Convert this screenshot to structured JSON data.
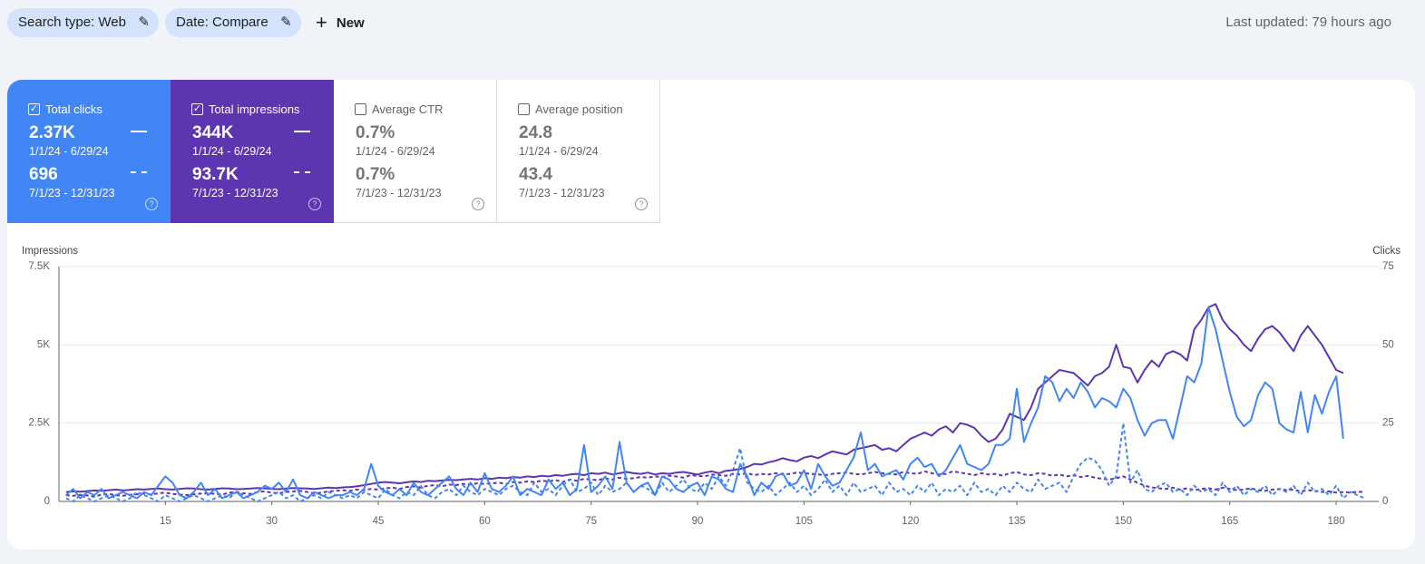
{
  "toolbar": {
    "chips": [
      "Search type: Web",
      "Date: Compare"
    ],
    "new_button": "New",
    "last_updated": "Last updated: 79 hours ago"
  },
  "metrics": [
    {
      "title": "Total clicks",
      "checked": true,
      "color": "#4285f4",
      "current": "2.37K",
      "current_range": "1/1/24 - 6/29/24",
      "previous": "696",
      "previous_range": "7/1/23 - 12/31/23"
    },
    {
      "title": "Total impressions",
      "checked": true,
      "color": "#5e35b1",
      "current": "344K",
      "current_range": "1/1/24 - 6/29/24",
      "previous": "93.7K",
      "previous_range": "7/1/23 - 12/31/23"
    },
    {
      "title": "Average CTR",
      "checked": false,
      "color": "#00897b",
      "current": "0.7%",
      "current_range": "1/1/24 - 6/29/24",
      "previous": "0.7%",
      "previous_range": "7/1/23 - 12/31/23"
    },
    {
      "title": "Average position",
      "checked": false,
      "color": "#e8710a",
      "current": "24.8",
      "current_range": "1/1/24 - 6/29/24",
      "previous": "43.4",
      "previous_range": "7/1/23 - 12/31/23"
    }
  ],
  "chart_data": {
    "type": "line",
    "y_label": "Impressions",
    "y2_label": "Clicks",
    "xlim": [
      0,
      186
    ],
    "xticks": [
      15,
      30,
      45,
      60,
      75,
      90,
      105,
      120,
      135,
      150,
      165,
      180
    ],
    "ylim": [
      0,
      7500
    ],
    "yticks": [
      0,
      {
        "value": 2500,
        "label": "2.5K"
      },
      {
        "value": 5000,
        "label": "5K"
      },
      {
        "value": 7500,
        "label": "7.5K"
      }
    ],
    "y2lim": [
      0,
      75
    ],
    "y2ticks": [
      0,
      25,
      50,
      75
    ],
    "grid": true,
    "x": [
      1,
      2,
      3,
      4,
      5,
      6,
      7,
      8,
      9,
      10,
      11,
      12,
      13,
      14,
      15,
      16,
      17,
      18,
      19,
      20,
      21,
      22,
      23,
      24,
      25,
      26,
      27,
      28,
      29,
      30,
      31,
      32,
      33,
      34,
      35,
      36,
      37,
      38,
      39,
      40,
      41,
      42,
      43,
      44,
      45,
      46,
      47,
      48,
      49,
      50,
      51,
      52,
      53,
      54,
      55,
      56,
      57,
      58,
      59,
      60,
      61,
      62,
      63,
      64,
      65,
      66,
      67,
      68,
      69,
      70,
      71,
      72,
      73,
      74,
      75,
      76,
      77,
      78,
      79,
      80,
      81,
      82,
      83,
      84,
      85,
      86,
      87,
      88,
      89,
      90,
      91,
      92,
      93,
      94,
      95,
      96,
      97,
      98,
      99,
      100,
      101,
      102,
      103,
      104,
      105,
      106,
      107,
      108,
      109,
      110,
      111,
      112,
      113,
      114,
      115,
      116,
      117,
      118,
      119,
      120,
      121,
      122,
      123,
      124,
      125,
      126,
      127,
      128,
      129,
      130,
      131,
      132,
      133,
      134,
      135,
      136,
      137,
      138,
      139,
      140,
      141,
      142,
      143,
      144,
      145,
      146,
      147,
      148,
      149,
      150,
      151,
      152,
      153,
      154,
      155,
      156,
      157,
      158,
      159,
      160,
      161,
      162,
      163,
      164,
      165,
      166,
      167,
      168,
      169,
      170,
      171,
      172,
      173,
      174,
      175,
      176,
      177,
      178,
      179,
      180,
      181,
      182,
      183,
      184
    ],
    "series": [
      {
        "name": "Impressions previous",
        "color": "#5e35b1",
        "dash": true,
        "values": [
          200,
          180,
          210,
          190,
          150,
          220,
          240,
          200,
          180,
          210,
          230,
          250,
          220,
          260,
          280,
          240,
          220,
          200,
          230,
          250,
          260,
          240,
          220,
          280,
          300,
          260,
          240,
          300,
          320,
          280,
          260,
          300,
          320,
          340,
          300,
          260,
          280,
          320,
          340,
          360,
          340,
          380,
          360,
          400,
          380,
          420,
          440,
          400,
          460,
          480,
          440,
          500,
          520,
          480,
          540,
          520,
          560,
          540,
          580,
          560,
          580,
          600,
          560,
          620,
          600,
          640,
          620,
          660,
          640,
          680,
          620,
          700,
          660,
          720,
          700,
          680,
          740,
          700,
          760,
          720,
          740,
          780,
          760,
          800,
          780,
          820,
          800,
          760,
          840,
          820,
          800,
          860,
          840,
          820,
          880,
          860,
          900,
          840,
          880,
          860,
          900,
          860,
          880,
          920,
          900,
          880,
          860,
          840,
          880,
          900,
          920,
          880,
          860,
          900,
          940,
          900,
          880,
          860,
          940,
          900,
          880,
          960,
          900,
          860,
          880,
          960,
          920,
          880,
          840,
          900,
          860,
          880,
          820,
          900,
          940,
          860,
          840,
          900,
          880,
          820,
          860,
          800,
          840,
          780,
          820,
          760,
          720,
          700,
          740,
          800,
          700,
          600,
          500,
          450,
          420,
          400,
          440,
          380,
          420,
          360,
          400,
          420,
          380,
          440,
          400,
          360,
          380,
          420,
          360,
          340,
          380,
          400,
          360,
          380,
          320,
          360,
          340,
          300,
          320,
          280,
          300,
          280,
          310,
          300
        ]
      },
      {
        "name": "Clicks previous",
        "color": "#4285f4",
        "dash": true,
        "axis": "y2",
        "values": [
          1,
          0,
          2,
          1,
          0,
          1,
          2,
          1,
          0,
          1,
          3,
          2,
          1,
          0,
          2,
          1,
          0,
          1,
          2,
          1,
          0,
          1,
          2,
          1,
          3,
          2,
          1,
          0,
          1,
          2,
          3,
          1,
          2,
          0,
          1,
          2,
          1,
          3,
          2,
          1,
          2,
          1,
          3,
          2,
          1,
          4,
          2,
          1,
          3,
          2,
          5,
          2,
          1,
          3,
          4,
          2,
          5,
          3,
          2,
          4,
          3,
          2,
          4,
          5,
          3,
          2,
          6,
          3,
          4,
          2,
          5,
          7,
          3,
          4,
          6,
          2,
          5,
          3,
          4,
          6,
          3,
          5,
          4,
          2,
          6,
          3,
          5,
          7,
          4,
          3,
          6,
          4,
          8,
          5,
          10,
          17,
          6,
          4,
          3,
          5,
          2,
          4,
          6,
          3,
          5,
          2,
          4,
          7,
          3,
          5,
          2,
          6,
          3,
          4,
          5,
          2,
          6,
          3,
          4,
          2,
          5,
          3,
          6,
          2,
          4,
          3,
          5,
          2,
          6,
          3,
          4,
          2,
          5,
          3,
          6,
          4,
          3,
          7,
          4,
          5,
          6,
          3,
          8,
          12,
          14,
          13,
          10,
          5,
          8,
          25,
          6,
          10,
          4,
          3,
          5,
          6,
          3,
          4,
          2,
          5,
          3,
          4,
          2,
          6,
          3,
          5,
          2,
          4,
          3,
          5,
          2,
          4,
          3,
          5,
          2,
          6,
          3,
          4,
          2,
          5,
          1,
          3,
          2,
          1
        ]
      },
      {
        "name": "Impressions",
        "color": "#5e35b1",
        "dash": false,
        "values": [
          300,
          320,
          310,
          330,
          350,
          340,
          360,
          380,
          350,
          370,
          390,
          380,
          400,
          410,
          390,
          380,
          400,
          420,
          410,
          390,
          380,
          400,
          420,
          410,
          390,
          400,
          410,
          430,
          420,
          400,
          390,
          410,
          430,
          420,
          410,
          400,
          420,
          440,
          430,
          450,
          460,
          480,
          520,
          560,
          600,
          620,
          600,
          580,
          610,
          640,
          620,
          660,
          650,
          670,
          690,
          680,
          700,
          720,
          700,
          740,
          720,
          760,
          740,
          780,
          760,
          800,
          780,
          820,
          800,
          840,
          820,
          860,
          880,
          840,
          900,
          880,
          920,
          860,
          900,
          940,
          900,
          880,
          920,
          860,
          900,
          880,
          920,
          940,
          900,
          860,
          920,
          960,
          900,
          980,
          1000,
          1040,
          1100,
          1200,
          1180,
          1250,
          1300,
          1380,
          1320,
          1280,
          1400,
          1450,
          1380,
          1500,
          1600,
          1550,
          1500,
          1650,
          1700,
          1750,
          1800,
          1650,
          1700,
          1600,
          1800,
          2000,
          2100,
          2200,
          2100,
          2300,
          2400,
          2200,
          2500,
          2450,
          2350,
          2100,
          1900,
          2000,
          2300,
          2800,
          2700,
          2600,
          3000,
          3600,
          3800,
          4000,
          4200,
          4150,
          4100,
          3900,
          3700,
          4000,
          4100,
          4300,
          5000,
          4300,
          4250,
          3800,
          4200,
          4500,
          4300,
          4700,
          4800,
          4700,
          4500,
          5500,
          5800,
          6200,
          6300,
          5800,
          5500,
          5300,
          5000,
          4800,
          5200,
          5500,
          5600,
          5400,
          5100,
          4800,
          5300,
          5600,
          5300,
          5000,
          4600,
          4200,
          4100,
          null,
          null,
          null
        ]
      },
      {
        "name": "Clicks",
        "color": "#4285f4",
        "dash": false,
        "axis": "y2",
        "values": [
          2,
          4,
          1,
          3,
          2,
          4,
          1,
          2,
          3,
          2,
          1,
          3,
          2,
          5,
          8,
          6,
          2,
          1,
          3,
          6,
          2,
          4,
          1,
          2,
          3,
          1,
          2,
          3,
          5,
          4,
          6,
          3,
          7,
          2,
          1,
          3,
          2,
          1,
          2,
          2,
          3,
          2,
          4,
          12,
          5,
          3,
          2,
          4,
          2,
          6,
          3,
          2,
          4,
          6,
          8,
          4,
          2,
          6,
          3,
          9,
          4,
          3,
          5,
          8,
          2,
          4,
          3,
          2,
          7,
          4,
          6,
          2,
          4,
          18,
          3,
          5,
          8,
          4,
          19,
          6,
          3,
          5,
          6,
          2,
          8,
          7,
          4,
          3,
          5,
          6,
          2,
          8,
          7,
          4,
          3,
          12,
          8,
          2,
          6,
          4,
          8,
          9,
          5,
          6,
          10,
          4,
          12,
          8,
          5,
          6,
          10,
          14,
          22,
          10,
          12,
          8,
          9,
          10,
          7,
          12,
          14,
          11,
          12,
          8,
          10,
          14,
          18,
          12,
          11,
          10,
          12,
          18,
          18,
          20,
          36,
          19,
          25,
          30,
          40,
          38,
          32,
          36,
          33,
          38,
          35,
          30,
          33,
          32,
          30,
          36,
          33,
          26,
          21,
          25,
          26,
          26,
          20,
          30,
          40,
          38,
          44,
          62,
          55,
          45,
          35,
          27,
          24,
          26,
          34,
          38,
          36,
          25,
          23,
          22,
          35,
          22,
          34,
          28,
          35,
          40,
          20,
          null,
          null,
          null
        ]
      }
    ]
  }
}
